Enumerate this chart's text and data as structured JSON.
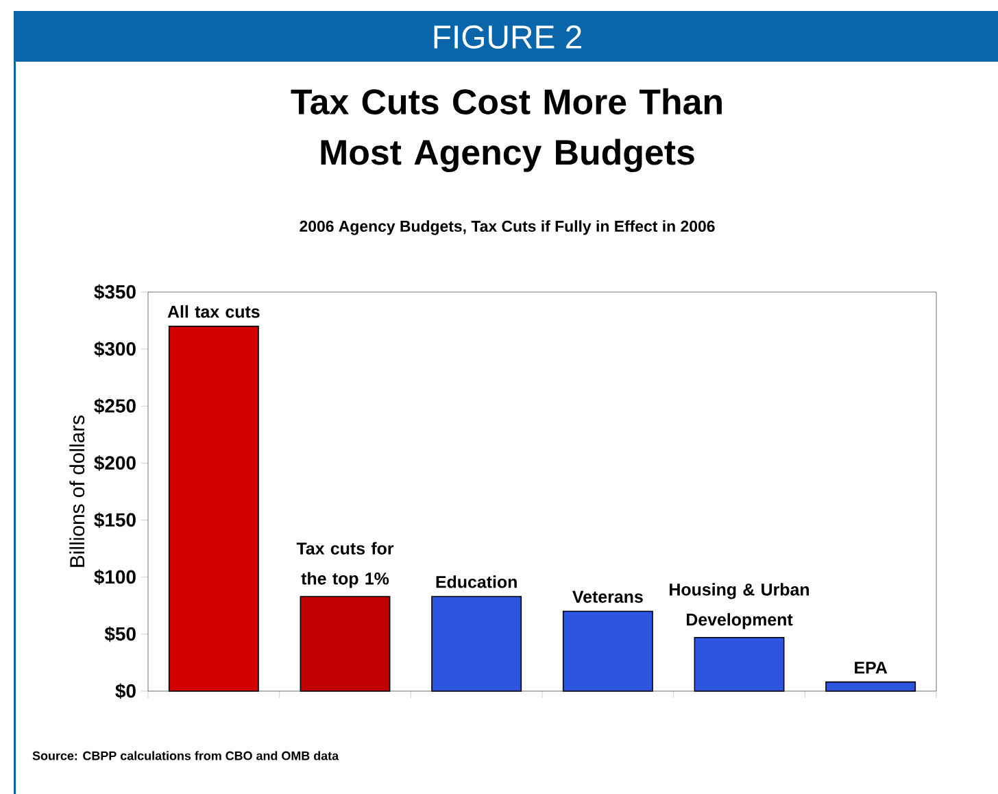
{
  "chart_data": {
    "type": "bar",
    "title": "Tax Cuts Cost More Than Most Agency Budgets",
    "subtitle": "2006 Agency Budgets, Tax Cuts if Fully in Effect in 2006",
    "ylabel": "Billions of dollars",
    "annotations": [
      "FIGURE 2",
      "Source: CBPP calculations from CBO and OMB data"
    ],
    "categories": [
      "All tax cuts",
      "Tax cuts for the top 1%",
      "Education",
      "Veterans",
      "Housing & Urban Development",
      "EPA"
    ],
    "values": [
      320,
      83,
      83,
      70,
      47,
      8
    ],
    "colors": [
      "#d40000",
      "#c00000",
      "#2d55e0",
      "#2d55e0",
      "#2d55e0",
      "#2d55e0"
    ],
    "ylim": [
      0,
      350
    ],
    "yticks": [
      {
        "value": 0,
        "label": "$0"
      },
      {
        "value": 50,
        "label": "$50"
      },
      {
        "value": 100,
        "label": "$100"
      },
      {
        "value": 150,
        "label": "$150"
      },
      {
        "value": 200,
        "label": "$200"
      },
      {
        "value": 250,
        "label": "$250"
      },
      {
        "value": 300,
        "label": "$300"
      },
      {
        "value": 350,
        "label": "$350"
      }
    ]
  }
}
